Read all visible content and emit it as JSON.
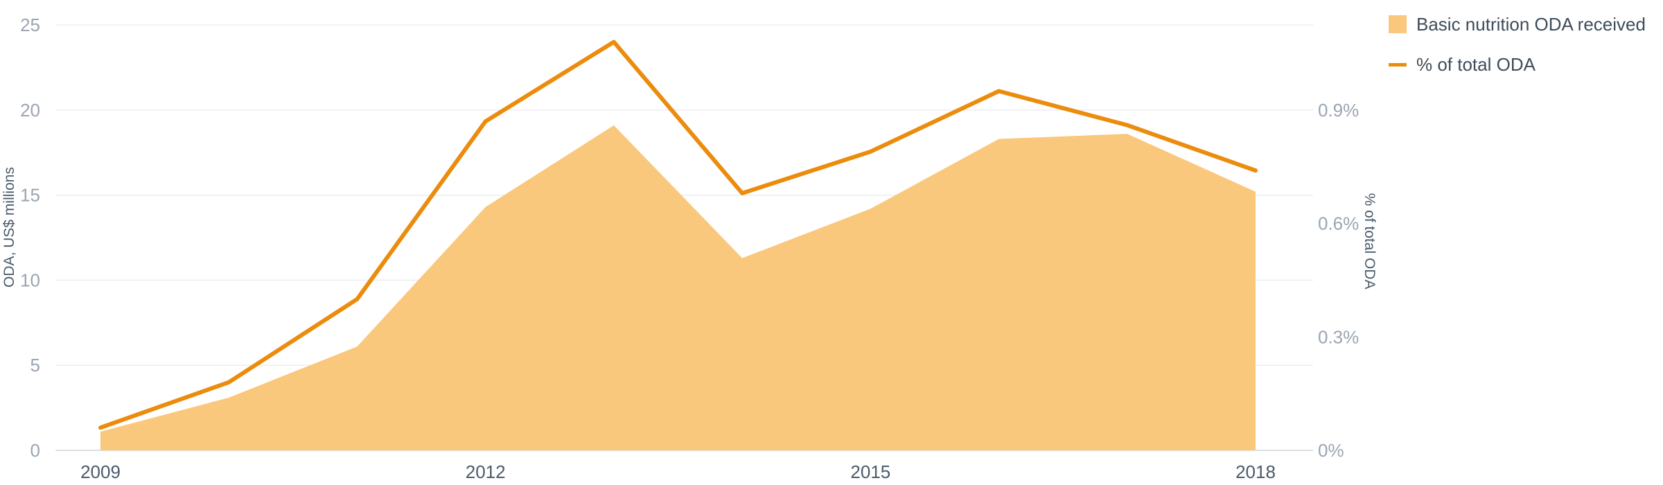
{
  "chart_data": {
    "type": "area",
    "x": [
      2009,
      2010,
      2011,
      2012,
      2013,
      2014,
      2015,
      2016,
      2017,
      2018
    ],
    "x_tick_labels": [
      "2009",
      "2012",
      "2015",
      "2018"
    ],
    "x_tick_values": [
      2009,
      2012,
      2015,
      2018
    ],
    "series": [
      {
        "name": "Basic nutrition ODA received",
        "kind": "area",
        "axis": "left",
        "color": "#fac87c",
        "values": [
          1.1,
          3.1,
          6.1,
          14.3,
          19.1,
          11.3,
          14.2,
          18.3,
          18.6,
          15.2
        ]
      },
      {
        "name": "% of total ODA",
        "kind": "line",
        "axis": "right",
        "color": "#eb8c0d",
        "values": [
          0.06,
          0.18,
          0.4,
          0.87,
          1.08,
          0.68,
          0.79,
          0.95,
          0.86,
          0.74
        ]
      }
    ],
    "y_left": {
      "label": "ODA, US$ millions",
      "range": [
        0,
        25
      ],
      "ticks": [
        0,
        5,
        10,
        15,
        20,
        25
      ],
      "tick_labels": [
        "0",
        "5",
        "10",
        "15",
        "20",
        "25"
      ]
    },
    "y_right": {
      "label": "% of total ODA",
      "range": [
        0,
        1.125
      ],
      "ticks": [
        0,
        0.3,
        0.6,
        0.9
      ],
      "tick_labels": [
        "0%",
        "0.3%",
        "0.6%",
        "0.9%"
      ]
    },
    "grid": true,
    "legend_position": "top-right"
  }
}
